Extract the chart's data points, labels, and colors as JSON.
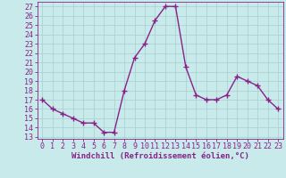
{
  "x": [
    0,
    1,
    2,
    3,
    4,
    5,
    6,
    7,
    8,
    9,
    10,
    11,
    12,
    13,
    14,
    15,
    16,
    17,
    18,
    19,
    20,
    21,
    22,
    23
  ],
  "y": [
    17,
    16,
    15.5,
    15,
    14.5,
    14.5,
    13.5,
    13.5,
    18,
    21.5,
    23,
    25.5,
    27,
    27,
    20.5,
    17.5,
    17,
    17,
    17.5,
    19.5,
    19,
    18.5,
    17,
    16
  ],
  "line_color": "#882288",
  "marker_color": "#882288",
  "bg_color": "#c8eaea",
  "grid_color": "#a8cece",
  "xlabel": "Windchill (Refroidissement éolien,°C)",
  "xlim": [
    -0.5,
    23.5
  ],
  "ylim": [
    12.8,
    27.5
  ],
  "yticks": [
    13,
    14,
    15,
    16,
    17,
    18,
    19,
    20,
    21,
    22,
    23,
    24,
    25,
    26,
    27
  ],
  "xticks": [
    0,
    1,
    2,
    3,
    4,
    5,
    6,
    7,
    8,
    9,
    10,
    11,
    12,
    13,
    14,
    15,
    16,
    17,
    18,
    19,
    20,
    21,
    22,
    23
  ],
  "tick_color": "#882288",
  "label_fontsize": 6.5,
  "tick_fontsize": 6.0
}
